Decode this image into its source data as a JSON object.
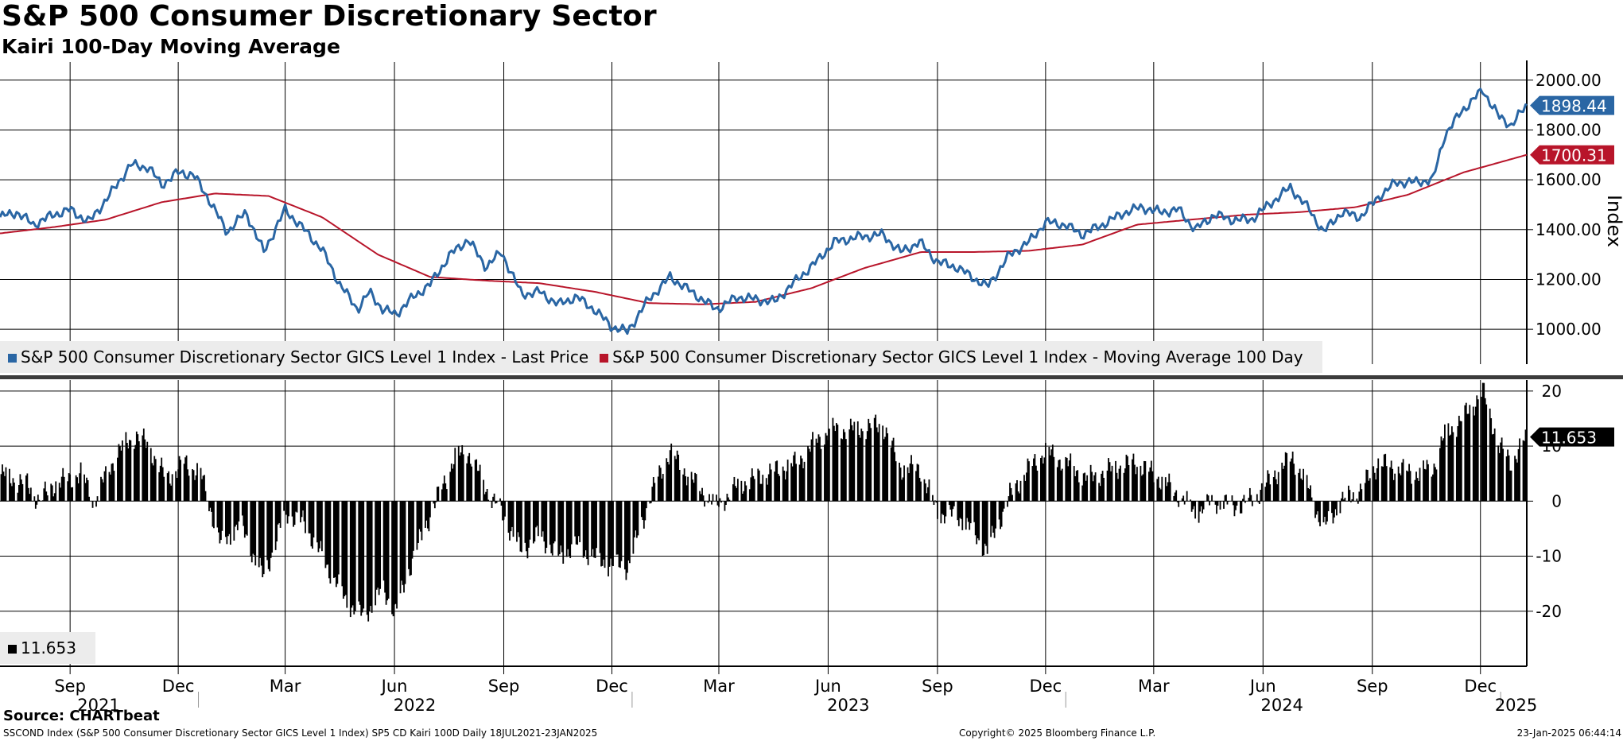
{
  "header": {
    "title": "S&P 500 Consumer Discretionary Sector",
    "subtitle": "Kairi 100-Day Moving Average"
  },
  "chart_data": [
    {
      "type": "line",
      "panel": "top",
      "ylabel": "Index",
      "ylim": [
        860,
        2060
      ],
      "yticks": [
        1000,
        1200,
        1400,
        1600,
        1800,
        2000
      ],
      "ytick_labels": [
        "1000.00",
        "1200.00",
        "1400.00",
        "1600.00",
        "1800.00",
        "2000.00"
      ],
      "grid": true,
      "legend_position": "bottom-left",
      "x_start": "2021-07-18",
      "x_end": "2025-01-23",
      "series": [
        {
          "name": "S&P 500 Consumer Discretionary Sector GICS Level 1 Index - Last Price",
          "color": "#2a66a4",
          "last_label": "1898.44",
          "points": [
            [
              "2021-07-18",
              1450
            ],
            [
              "2021-08-01",
              1470
            ],
            [
              "2021-08-15",
              1420
            ],
            [
              "2021-09-01",
              1460
            ],
            [
              "2021-09-15",
              1480
            ],
            [
              "2021-10-01",
              1430
            ],
            [
              "2021-10-20",
              1550
            ],
            [
              "2021-11-05",
              1660
            ],
            [
              "2021-11-20",
              1650
            ],
            [
              "2021-12-01",
              1580
            ],
            [
              "2021-12-15",
              1630
            ],
            [
              "2021-12-28",
              1620
            ],
            [
              "2022-01-10",
              1520
            ],
            [
              "2022-01-25",
              1390
            ],
            [
              "2022-02-10",
              1470
            ],
            [
              "2022-02-25",
              1310
            ],
            [
              "2022-03-15",
              1480
            ],
            [
              "2022-03-31",
              1400
            ],
            [
              "2022-04-15",
              1320
            ],
            [
              "2022-04-30",
              1180
            ],
            [
              "2022-05-15",
              1080
            ],
            [
              "2022-05-25",
              1150
            ],
            [
              "2022-06-05",
              1080
            ],
            [
              "2022-06-16",
              1060
            ],
            [
              "2022-07-01",
              1130
            ],
            [
              "2022-07-15",
              1180
            ],
            [
              "2022-08-01",
              1300
            ],
            [
              "2022-08-16",
              1360
            ],
            [
              "2022-08-31",
              1250
            ],
            [
              "2022-09-13",
              1310
            ],
            [
              "2022-09-30",
              1140
            ],
            [
              "2022-10-15",
              1150
            ],
            [
              "2022-10-31",
              1100
            ],
            [
              "2022-11-15",
              1130
            ],
            [
              "2022-11-30",
              1080
            ],
            [
              "2022-12-15",
              1010
            ],
            [
              "2022-12-28",
              990
            ],
            [
              "2023-01-15",
              1120
            ],
            [
              "2023-02-02",
              1210
            ],
            [
              "2023-02-20",
              1150
            ],
            [
              "2023-03-13",
              1080
            ],
            [
              "2023-03-31",
              1130
            ],
            [
              "2023-04-15",
              1120
            ],
            [
              "2023-05-01",
              1110
            ],
            [
              "2023-05-20",
              1200
            ],
            [
              "2023-06-05",
              1270
            ],
            [
              "2023-06-20",
              1350
            ],
            [
              "2023-07-10",
              1370
            ],
            [
              "2023-07-31",
              1380
            ],
            [
              "2023-08-15",
              1310
            ],
            [
              "2023-08-31",
              1350
            ],
            [
              "2023-09-15",
              1270
            ],
            [
              "2023-10-01",
              1250
            ],
            [
              "2023-10-27",
              1170
            ],
            [
              "2023-11-15",
              1300
            ],
            [
              "2023-12-01",
              1350
            ],
            [
              "2023-12-15",
              1430
            ],
            [
              "2023-12-31",
              1420
            ],
            [
              "2024-01-15",
              1380
            ],
            [
              "2024-02-01",
              1420
            ],
            [
              "2024-02-20",
              1470
            ],
            [
              "2024-03-05",
              1490
            ],
            [
              "2024-03-20",
              1470
            ],
            [
              "2024-04-05",
              1480
            ],
            [
              "2024-04-19",
              1400
            ],
            [
              "2024-05-05",
              1460
            ],
            [
              "2024-05-20",
              1440
            ],
            [
              "2024-06-05",
              1440
            ],
            [
              "2024-06-20",
              1500
            ],
            [
              "2024-07-08",
              1570
            ],
            [
              "2024-07-24",
              1480
            ],
            [
              "2024-08-05",
              1390
            ],
            [
              "2024-08-20",
              1470
            ],
            [
              "2024-09-05",
              1450
            ],
            [
              "2024-09-20",
              1530
            ],
            [
              "2024-10-05",
              1590
            ],
            [
              "2024-10-20",
              1590
            ],
            [
              "2024-11-05",
              1600
            ],
            [
              "2024-11-15",
              1780
            ],
            [
              "2024-11-30",
              1880
            ],
            [
              "2024-12-17",
              1960
            ],
            [
              "2024-12-31",
              1850
            ],
            [
              "2025-01-10",
              1820
            ],
            [
              "2025-01-23",
              1898.44
            ]
          ]
        },
        {
          "name": "S&P 500 Consumer Discretionary Sector GICS Level 1 Index - Moving Average 100 Day",
          "color": "#b8152a",
          "last_label": "1700.31",
          "points": [
            [
              "2021-07-18",
              1385
            ],
            [
              "2021-09-01",
              1410
            ],
            [
              "2021-10-15",
              1440
            ],
            [
              "2021-12-01",
              1510
            ],
            [
              "2022-01-15",
              1545
            ],
            [
              "2022-03-01",
              1535
            ],
            [
              "2022-04-15",
              1450
            ],
            [
              "2022-06-01",
              1300
            ],
            [
              "2022-07-15",
              1210
            ],
            [
              "2022-09-01",
              1195
            ],
            [
              "2022-10-15",
              1185
            ],
            [
              "2022-12-01",
              1150
            ],
            [
              "2023-01-15",
              1105
            ],
            [
              "2023-03-01",
              1100
            ],
            [
              "2023-04-15",
              1110
            ],
            [
              "2023-06-01",
              1165
            ],
            [
              "2023-07-15",
              1245
            ],
            [
              "2023-09-01",
              1310
            ],
            [
              "2023-10-15",
              1310
            ],
            [
              "2023-12-01",
              1315
            ],
            [
              "2024-01-15",
              1340
            ],
            [
              "2024-03-01",
              1420
            ],
            [
              "2024-04-15",
              1440
            ],
            [
              "2024-06-01",
              1460
            ],
            [
              "2024-07-15",
              1470
            ],
            [
              "2024-09-01",
              1490
            ],
            [
              "2024-10-15",
              1540
            ],
            [
              "2024-12-01",
              1630
            ],
            [
              "2025-01-23",
              1700.31
            ]
          ]
        }
      ]
    },
    {
      "type": "bar",
      "panel": "bottom",
      "ylim": [
        -30,
        22
      ],
      "yticks": [
        -20,
        -10,
        0,
        10,
        20
      ],
      "ytick_labels": [
        "-20",
        "-10",
        "0",
        "10",
        "20"
      ],
      "grid": true,
      "legend_position": "bottom-left",
      "series": [
        {
          "name": "Kairi 100-Day",
          "color": "#000000",
          "last_label": "11.653",
          "points": [
            [
              "2021-07-18",
              5
            ],
            [
              "2021-08-10",
              3
            ],
            [
              "2021-08-20",
              0
            ],
            [
              "2021-09-01",
              3
            ],
            [
              "2021-09-25",
              5
            ],
            [
              "2021-10-05",
              0
            ],
            [
              "2021-10-25",
              9
            ],
            [
              "2021-11-10",
              12
            ],
            [
              "2021-11-20",
              10
            ],
            [
              "2021-12-05",
              4
            ],
            [
              "2021-12-20",
              7
            ],
            [
              "2022-01-03",
              5
            ],
            [
              "2022-01-20",
              -8
            ],
            [
              "2022-02-05",
              -4
            ],
            [
              "2022-02-25",
              -14
            ],
            [
              "2022-03-15",
              -2
            ],
            [
              "2022-03-31",
              -4
            ],
            [
              "2022-04-20",
              -12
            ],
            [
              "2022-05-05",
              -18
            ],
            [
              "2022-05-20",
              -21
            ],
            [
              "2022-06-05",
              -16
            ],
            [
              "2022-06-16",
              -20
            ],
            [
              "2022-07-01",
              -10
            ],
            [
              "2022-07-20",
              0
            ],
            [
              "2022-08-05",
              8
            ],
            [
              "2022-08-16",
              9
            ],
            [
              "2022-09-01",
              2
            ],
            [
              "2022-09-13",
              -2
            ],
            [
              "2022-09-30",
              -9
            ],
            [
              "2022-10-15",
              -6
            ],
            [
              "2022-10-31",
              -10
            ],
            [
              "2022-11-15",
              -8
            ],
            [
              "2022-12-05",
              -11
            ],
            [
              "2022-12-28",
              -12
            ],
            [
              "2023-01-20",
              3
            ],
            [
              "2023-02-02",
              9
            ],
            [
              "2023-02-20",
              4
            ],
            [
              "2023-03-13",
              -1
            ],
            [
              "2023-04-01",
              3
            ],
            [
              "2023-04-25",
              5
            ],
            [
              "2023-05-20",
              7
            ],
            [
              "2023-06-05",
              11
            ],
            [
              "2023-06-20",
              13
            ],
            [
              "2023-07-10",
              13
            ],
            [
              "2023-07-31",
              14
            ],
            [
              "2023-08-15",
              6
            ],
            [
              "2023-08-31",
              6
            ],
            [
              "2023-09-15",
              -2
            ],
            [
              "2023-10-05",
              -3
            ],
            [
              "2023-10-27",
              -9
            ],
            [
              "2023-11-15",
              1
            ],
            [
              "2023-12-01",
              6
            ],
            [
              "2023-12-15",
              9
            ],
            [
              "2024-01-01",
              7
            ],
            [
              "2024-01-20",
              4
            ],
            [
              "2024-02-10",
              6
            ],
            [
              "2024-02-28",
              7
            ],
            [
              "2024-03-15",
              5
            ],
            [
              "2024-04-01",
              2
            ],
            [
              "2024-04-19",
              -2
            ],
            [
              "2024-05-05",
              0
            ],
            [
              "2024-05-25",
              -1
            ],
            [
              "2024-06-10",
              1
            ],
            [
              "2024-06-25",
              5
            ],
            [
              "2024-07-10",
              8
            ],
            [
              "2024-07-24",
              2
            ],
            [
              "2024-08-05",
              -5
            ],
            [
              "2024-08-20",
              0
            ],
            [
              "2024-09-05",
              2
            ],
            [
              "2024-09-20",
              7
            ],
            [
              "2024-10-05",
              6
            ],
            [
              "2024-10-20",
              5
            ],
            [
              "2024-11-05",
              6
            ],
            [
              "2024-11-15",
              12
            ],
            [
              "2024-11-30",
              15
            ],
            [
              "2024-12-17",
              20
            ],
            [
              "2024-12-31",
              10
            ],
            [
              "2025-01-10",
              7
            ],
            [
              "2025-01-23",
              11.653
            ]
          ]
        }
      ]
    }
  ],
  "x_axis": {
    "month_labels": [
      {
        "label": "Sep",
        "date": "2021-09-15"
      },
      {
        "label": "Dec",
        "date": "2021-12-15"
      },
      {
        "label": "Mar",
        "date": "2022-03-15"
      },
      {
        "label": "Jun",
        "date": "2022-06-15"
      },
      {
        "label": "Sep",
        "date": "2022-09-15"
      },
      {
        "label": "Dec",
        "date": "2022-12-15"
      },
      {
        "label": "Mar",
        "date": "2023-03-15"
      },
      {
        "label": "Jun",
        "date": "2023-06-15"
      },
      {
        "label": "Sep",
        "date": "2023-09-15"
      },
      {
        "label": "Dec",
        "date": "2023-12-15"
      },
      {
        "label": "Mar",
        "date": "2024-03-15"
      },
      {
        "label": "Jun",
        "date": "2024-06-15"
      },
      {
        "label": "Sep",
        "date": "2024-09-15"
      },
      {
        "label": "Dec",
        "date": "2024-12-15"
      }
    ],
    "year_labels": [
      {
        "label": "2021",
        "date": "2021-10-09"
      },
      {
        "label": "2022",
        "date": "2022-07-02"
      },
      {
        "label": "2023",
        "date": "2023-07-02"
      },
      {
        "label": "2024",
        "date": "2024-07-01"
      },
      {
        "label": "2025",
        "date": "2025-01-14"
      }
    ],
    "year_boundaries": [
      "2022-01-01",
      "2023-01-01",
      "2024-01-01",
      "2025-01-01"
    ]
  },
  "legend": {
    "top_items": [
      {
        "label": "S&P 500 Consumer Discretionary Sector GICS Level 1 Index - Last Price",
        "color": "#2a66a4"
      },
      {
        "label": "S&P 500 Consumer Discretionary Sector GICS Level 1 Index - Moving Average 100 Day",
        "color": "#b8152a"
      }
    ],
    "bottom_items": [
      {
        "label": "11.653",
        "color": "#000000"
      }
    ]
  },
  "footer": {
    "source": "Source: CHARTbeat",
    "description": "SSCOND Index (S&P 500 Consumer Discretionary Sector GICS Level 1 Index) SP5 CD Kairi 100D  Daily 18JUL2021-23JAN2025",
    "copyright": "Copyright© 2025 Bloomberg Finance L.P.",
    "timestamp": "23-Jan-2025 06:44:14"
  }
}
